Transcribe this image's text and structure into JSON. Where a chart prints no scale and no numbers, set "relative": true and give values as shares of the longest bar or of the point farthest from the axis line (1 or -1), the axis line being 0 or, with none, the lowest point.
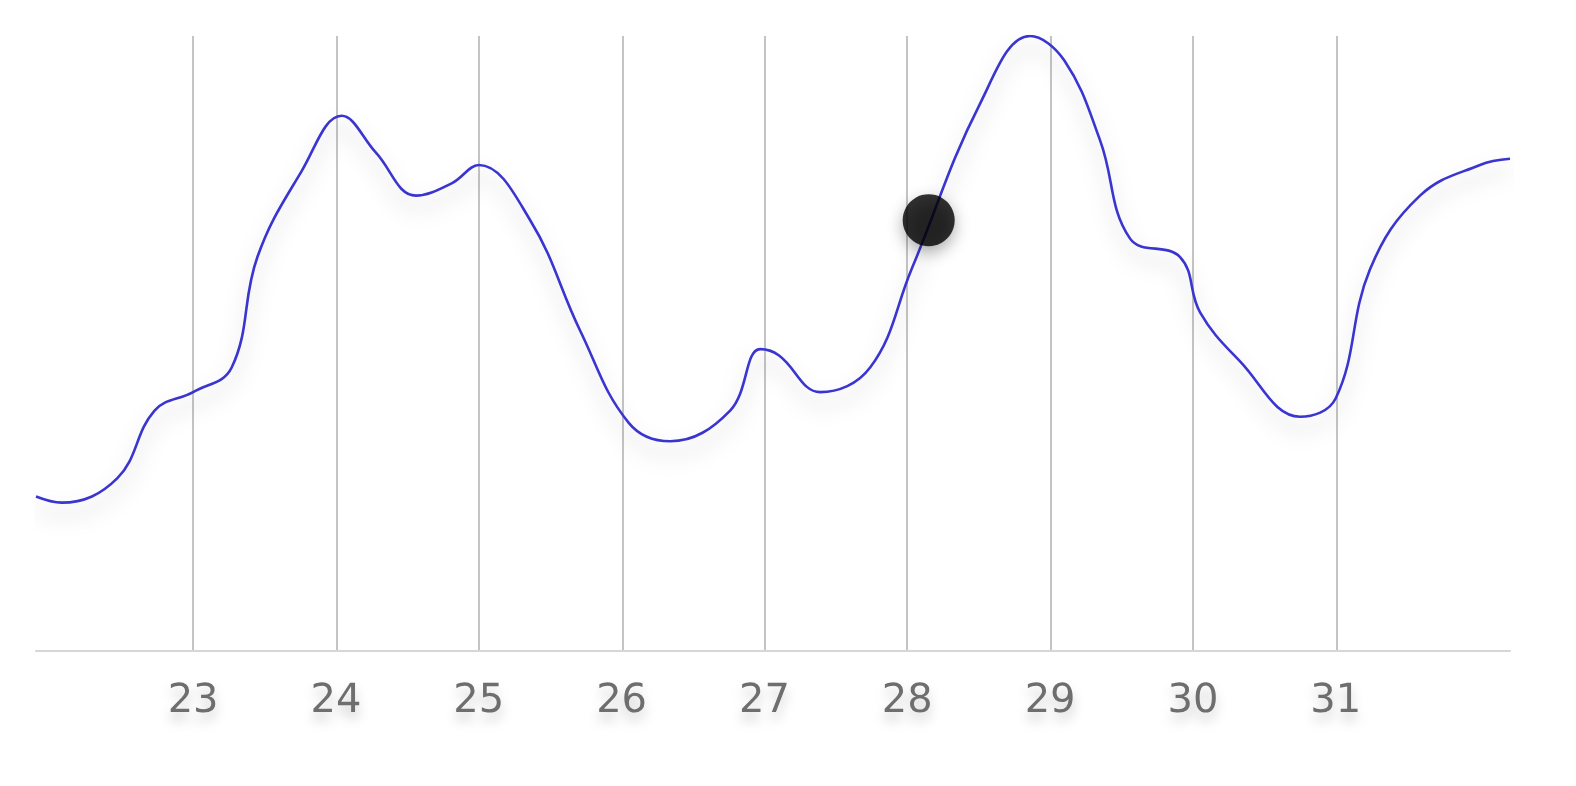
{
  "chart_data": {
    "type": "line",
    "relative": true,
    "grid": "x",
    "marker": "none",
    "xlim": [
      21.9,
      32.22
    ],
    "xticks": [
      23,
      24,
      25,
      26,
      27,
      28,
      29,
      30,
      31
    ],
    "series": [
      {
        "color": "#3b34d0",
        "x": [
          21.9,
          22.08,
          22.47,
          22.73,
          23,
          23.27,
          23.45,
          23.76,
          24.04,
          24.28,
          24.56,
          24.81,
          25,
          25.36,
          25.71,
          26.05,
          26.34,
          26.76,
          26.97,
          27.1,
          27.39,
          27.74,
          28.03,
          28.51,
          28.86,
          29.1,
          29.35,
          29.56,
          29.91,
          30.05,
          30.33,
          30.75,
          31,
          31.24,
          31.59,
          32.01,
          32.22
        ],
        "values": [
          0.25,
          0.24,
          0.28,
          0.39,
          0.42,
          0.46,
          0.64,
          0.78,
          0.87,
          0.81,
          0.74,
          0.76,
          0.79,
          0.7,
          0.52,
          0.37,
          0.34,
          0.39,
          0.49,
          0.48,
          0.42,
          0.46,
          0.62,
          0.89,
          1,
          0.96,
          0.83,
          0.67,
          0.64,
          0.55,
          0.47,
          0.38,
          0.41,
          0.62,
          0.74,
          0.79,
          0.8
        ]
      },
      {
        "type": "scatter",
        "marker": "circle",
        "color": "#000000",
        "x": [
          28.15
        ],
        "values": [
          0.7
        ]
      }
    ]
  }
}
